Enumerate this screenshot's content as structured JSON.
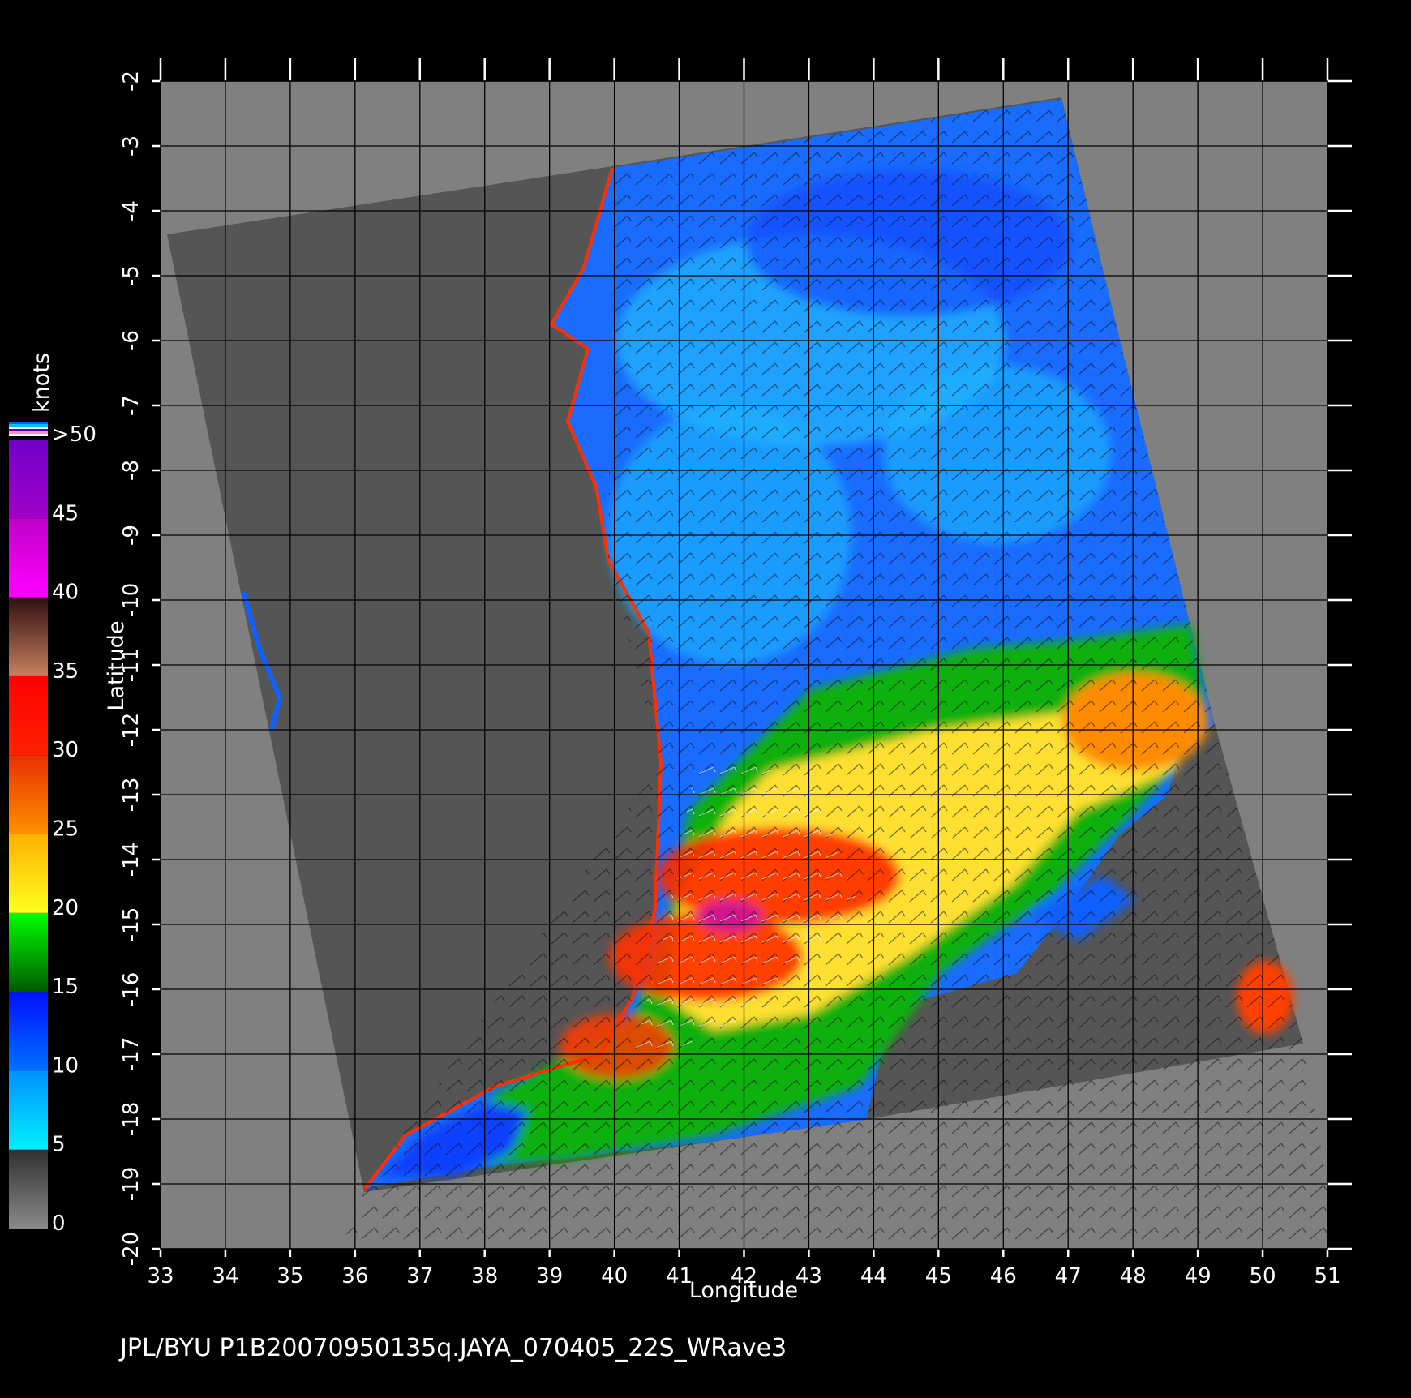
{
  "plot": {
    "xlabel": "Longitude",
    "ylabel": "Latitude",
    "xlim": [
      33,
      51
    ],
    "ylim": [
      -20,
      -2
    ],
    "xticks": [
      33,
      34,
      35,
      36,
      37,
      38,
      39,
      40,
      41,
      42,
      43,
      44,
      45,
      46,
      47,
      48,
      49,
      50,
      51
    ],
    "yticks": [
      -2,
      -3,
      -4,
      -5,
      -6,
      -7,
      -8,
      -9,
      -10,
      -11,
      -12,
      -13,
      -14,
      -15,
      -16,
      -17,
      -18,
      -19,
      -20
    ],
    "grid": true
  },
  "colorbar": {
    "label": "knots",
    "ticks": [
      0,
      5,
      10,
      15,
      20,
      25,
      30,
      35,
      40,
      45,
      {
        "value": 50,
        "label": ">50"
      }
    ],
    "colors": [
      [
        "#8a8a8a",
        "#303030"
      ],
      [
        "#00f0ff",
        "#0090ff"
      ],
      [
        "#0070ff",
        "#0010ff"
      ],
      [
        "#005a00",
        "#00ff00"
      ],
      [
        "#ffff20",
        "#ffb000"
      ],
      [
        "#ff9000",
        "#e83000"
      ],
      [
        "#ff2000",
        "#ff0000"
      ],
      [
        "#c88060",
        "#301010"
      ],
      [
        "#ff00ff",
        "#c000c8"
      ],
      [
        "#a000c8",
        "#7000c8"
      ]
    ]
  },
  "footer": "JPL/BYU  P1B20070950135q.JAYA_070405_22S_WRave3"
}
